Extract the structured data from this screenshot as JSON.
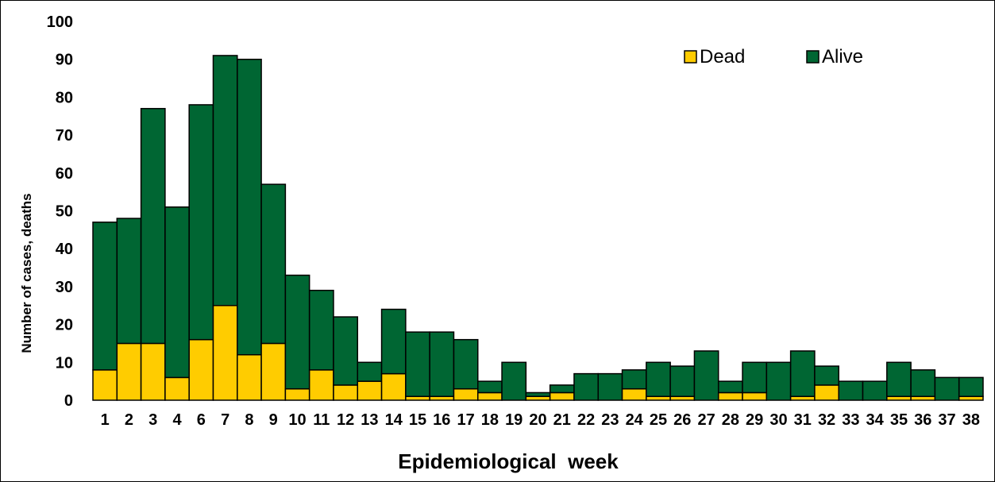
{
  "chart_data": {
    "type": "bar",
    "stacked": true,
    "title": "",
    "xlabel": "Epidemiological  week",
    "ylabel": "Number of cases, deaths",
    "ylim": [
      0,
      100
    ],
    "yticks": [
      0,
      10,
      20,
      30,
      40,
      50,
      60,
      70,
      80,
      90,
      100
    ],
    "grid": false,
    "legend_position": "top-right",
    "categories": [
      "1",
      "2",
      "3",
      "4",
      "6",
      "7",
      "8",
      "9",
      "10",
      "11",
      "12",
      "13",
      "14",
      "15",
      "16",
      "17",
      "18",
      "19",
      "20",
      "21",
      "22",
      "23",
      "24",
      "25",
      "26",
      "27",
      "28",
      "29",
      "30",
      "31",
      "32",
      "33",
      "34",
      "35",
      "36",
      "37",
      "38"
    ],
    "series": [
      {
        "name": "Dead",
        "color": "#FFCC00",
        "values": [
          8,
          15,
          15,
          6,
          16,
          25,
          12,
          15,
          3,
          8,
          4,
          5,
          7,
          1,
          1,
          3,
          2,
          0,
          1,
          2,
          0,
          0,
          3,
          1,
          1,
          0,
          2,
          2,
          0,
          1,
          4,
          0,
          0,
          1,
          1,
          0,
          1
        ]
      },
      {
        "name": "Alive",
        "color": "#006633",
        "values": [
          39,
          33,
          62,
          45,
          62,
          66,
          78,
          42,
          30,
          21,
          18,
          5,
          17,
          17,
          17,
          13,
          3,
          10,
          1,
          2,
          7,
          7,
          5,
          9,
          8,
          13,
          3,
          8,
          10,
          12,
          5,
          5,
          5,
          9,
          7,
          6,
          5
        ]
      }
    ]
  }
}
